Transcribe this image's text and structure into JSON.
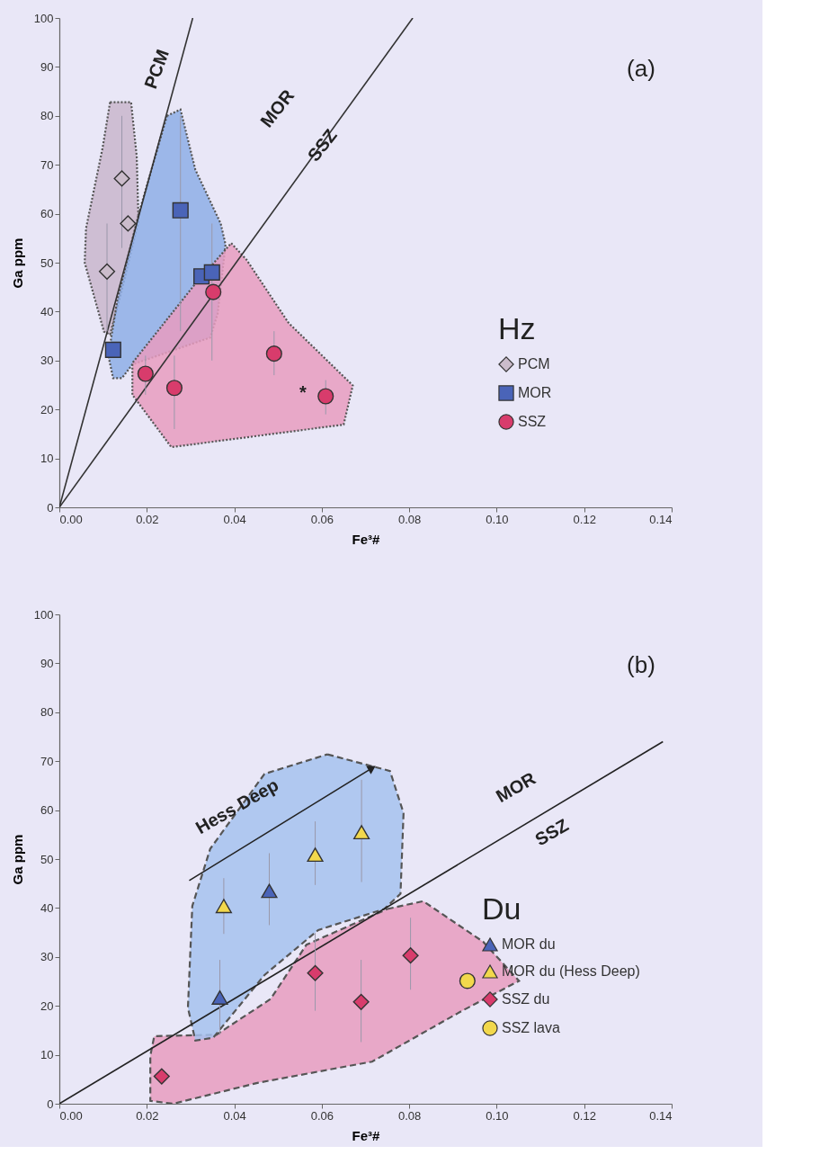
{
  "chart_data": [
    {
      "type": "scatter",
      "xlabel": "Fe³#",
      "ylabel": "Ga ppm",
      "legend_title": "Hz",
      "legend": "right",
      "grid": false,
      "xlim": [
        0,
        0.14
      ],
      "ylim": [
        0,
        100
      ],
      "xticks": [
        {
          "value": 0,
          "label": "0.00"
        },
        {
          "value": 0.02,
          "label": "0.02"
        },
        {
          "value": 0.04,
          "label": "0.04"
        },
        {
          "value": 0.06,
          "label": "0.06"
        },
        {
          "value": 0.08,
          "label": "0.08"
        },
        {
          "value": 0.1,
          "label": "0.10"
        },
        {
          "value": 0.12,
          "label": "0.12"
        },
        {
          "value": 0.14,
          "label": "0.14"
        }
      ],
      "yticks": [
        0,
        10,
        20,
        30,
        40,
        50,
        60,
        70,
        80,
        90,
        100
      ],
      "series": [
        {
          "type": "area",
          "color": "#c9b6cc",
          "line_style": "dotted",
          "x": [
            0.0116,
            0.0164,
            0.0177,
            0.0181,
            0.0143,
            0.0116,
            0.0102,
            0.0058,
            0.0061,
            0.0099,
            0.0116
          ],
          "values": [
            82.8,
            82.8,
            71.7,
            58.6,
            44.5,
            35.3,
            35.9,
            50.0,
            57.0,
            73.5,
            82.8
          ]
        },
        {
          "type": "area",
          "color": "#8eaee6",
          "line_style": "dotted",
          "x": [
            0.0246,
            0.0277,
            0.0311,
            0.0369,
            0.038,
            0.0362,
            0.0345,
            0.0167,
            0.0143,
            0.0123,
            0.0112,
            0.0133,
            0.0181,
            0.0246
          ],
          "values": [
            80.0,
            81.3,
            69.0,
            58.0,
            53.7,
            39.6,
            34.7,
            29.2,
            26.4,
            26.4,
            31.0,
            42.6,
            59.8,
            80.0
          ]
        },
        {
          "type": "area",
          "color": "#e89cc0",
          "line_style": "dotted",
          "x": [
            0.0393,
            0.0428,
            0.0524,
            0.0671,
            0.065,
            0.0256,
            0.0167,
            0.0167,
            0.0311,
            0.0393
          ],
          "values": [
            54.0,
            50.6,
            37.7,
            24.9,
            16.9,
            12.3,
            23.0,
            29.5,
            45.7,
            54.0
          ]
        },
        {
          "type": "line",
          "color": "#333333",
          "x": [
            0,
            0.0305
          ],
          "values": [
            0,
            100
          ]
        },
        {
          "type": "line",
          "color": "#333333",
          "x": [
            0,
            0.0808
          ],
          "values": [
            0,
            100
          ]
        },
        {
          "name": "PCM",
          "marker": "diamond",
          "color": "#cbbccb",
          "x": [
            0.0109,
            0.0143,
            0.0157
          ],
          "values": [
            48.2,
            67.2,
            58.0
          ],
          "errors": [
            [
              36,
              58
            ],
            [
              53,
              80
            ],
            null
          ]
        },
        {
          "name": "MOR",
          "marker": "square",
          "color": "#4a64b8",
          "x": [
            0.0123,
            0.0277,
            0.0325,
            0.0349
          ],
          "values": [
            32.2,
            60.7,
            47.2,
            48.0
          ],
          "errors": [
            null,
            [
              36,
              80
            ],
            null,
            [
              30,
              58
            ]
          ]
        },
        {
          "name": "SSZ",
          "marker": "circle",
          "color": "#d83c6c",
          "x": [
            0.0197,
            0.0263,
            0.0352,
            0.0491,
            0.0609
          ],
          "values": [
            27.3,
            24.4,
            44.0,
            31.4,
            22.7
          ],
          "errors": [
            [
              23,
              31
            ],
            [
              16,
              31
            ],
            null,
            [
              27,
              36
            ],
            [
              19,
              26
            ]
          ]
        }
      ],
      "annotations": [
        "(a)",
        "PCM",
        "MOR",
        "SSZ",
        "*"
      ]
    },
    {
      "type": "scatter",
      "xlabel": "Fe³#",
      "ylabel": "Ga ppm",
      "legend_title": "Du",
      "legend": "right",
      "grid": false,
      "xlim": [
        0,
        0.14
      ],
      "ylim": [
        0,
        100
      ],
      "xticks": [
        {
          "value": 0,
          "label": "0.00"
        },
        {
          "value": 0.02,
          "label": "0.02"
        },
        {
          "value": 0.04,
          "label": "0.04"
        },
        {
          "value": 0.06,
          "label": "0.06"
        },
        {
          "value": 0.08,
          "label": "0.08"
        },
        {
          "value": 0.1,
          "label": "0.10"
        },
        {
          "value": 0.12,
          "label": "0.12"
        },
        {
          "value": 0.14,
          "label": "0.14"
        }
      ],
      "yticks": [
        0,
        10,
        20,
        30,
        40,
        50,
        60,
        70,
        80,
        90,
        100
      ],
      "series": [
        {
          "type": "area",
          "color": "#e89cc0",
          "line_style": "dashed",
          "x": [
            0.075,
            0.0832,
            0.0969,
            0.1051,
            0.0921,
            0.0715,
            0.0455,
            0.026,
            0.0208,
            0.0208,
            0.0217,
            0.0359,
            0.0483,
            0.0565,
            0.075
          ],
          "values": [
            39.8,
            41.4,
            33.1,
            25.1,
            19.0,
            8.6,
            4.3,
            0,
            0.6,
            9.8,
            13.8,
            14.1,
            21.4,
            32.5,
            39.8
          ]
        },
        {
          "type": "area",
          "color": "#a6c2ee",
          "line_style": "dashed",
          "x": [
            0.0613,
            0.0756,
            0.0787,
            0.078,
            0.0743,
            0.0592,
            0.0469,
            0.0352,
            0.0311,
            0.0294,
            0.0304,
            0.0345,
            0.0469,
            0.0613
          ],
          "values": [
            71.4,
            68.0,
            59.4,
            42.9,
            39.8,
            35.5,
            26.3,
            13.5,
            12.9,
            19.6,
            40.4,
            52.1,
            67.4,
            71.4
          ]
        },
        {
          "type": "line",
          "color": "#222222",
          "x": [
            0,
            0.138
          ],
          "values": [
            0,
            74
          ]
        },
        {
          "type": "line",
          "color": "#222222",
          "x": [
            0.0297,
            0.0715
          ],
          "values": [
            45.6,
            68.6
          ]
        },
        {
          "name": "MOR du",
          "marker": "triangle",
          "color": "#4a64b8",
          "x": [
            0.0367,
            0.048
          ],
          "values": [
            21.7,
            43.5
          ],
          "errors": [
            [
              14.1,
              29.4
            ],
            [
              36.5,
              51.2
            ]
          ]
        },
        {
          "name": "MOR du (Hess Deep)",
          "marker": "triangle",
          "color": "#f2d84c",
          "x": [
            0.0376,
            0.0585,
            0.0691
          ],
          "values": [
            40.4,
            50.9,
            55.5
          ],
          "errors": [
            [
              34.7,
              46.1
            ],
            [
              44.7,
              57.7
            ],
            [
              45.3,
              66.2
            ]
          ]
        },
        {
          "name": "SSZ du",
          "marker": "diamond",
          "color": "#d83c6c",
          "x": [
            0.0234,
            0.0585,
            0.069,
            0.0803
          ],
          "values": [
            5.6,
            26.7,
            20.8,
            30.3
          ],
          "errors": [
            null,
            [
              19.0,
              34.9
            ],
            [
              12.6,
              29.4
            ],
            [
              23.3,
              38.0
            ]
          ]
        },
        {
          "name": "SSZ lava",
          "marker": "circle",
          "color": "#f2d84c",
          "x": [
            0.0933
          ],
          "values": [
            25.1
          ],
          "errors": [
            null
          ]
        }
      ],
      "annotations": [
        "(b)",
        "MOR",
        "SSZ",
        "Hess Deep"
      ]
    }
  ]
}
